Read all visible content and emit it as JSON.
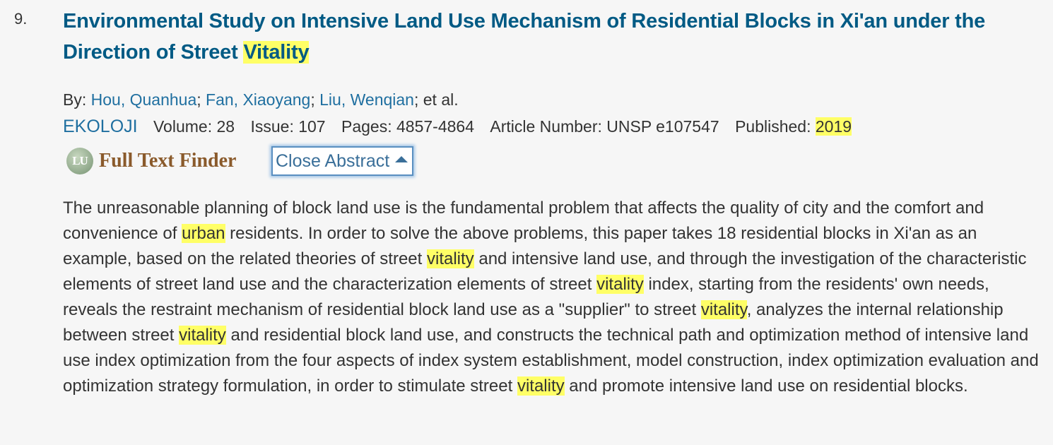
{
  "record": {
    "number": "9.",
    "title_pre": "Environmental Study on Intensive Land Use Mechanism of Residential Blocks in Xi'an under the Direction of Street ",
    "title_hl": "Vitality",
    "by_label": "By: ",
    "authors": [
      "Hou, Quanhua",
      "Fan, Xiaoyang",
      "Liu, Wenqian"
    ],
    "author_sep": "; ",
    "et_al": "; et al.",
    "journal": "EKOLOJI",
    "volume": "Volume: 28",
    "issue": "Issue: 107",
    "pages": "Pages: 4857-4864",
    "article_number": "Article Number: UNSP e107547",
    "published_label": "Published: ",
    "published_year": "2019",
    "full_text_finder": {
      "logo_text": "LU",
      "label": "Full Text Finder"
    },
    "close_abstract_label": "Close Abstract",
    "abstract": [
      {
        "t": "The unreasonable planning of block land use is the fundamental problem that affects the quality of city and the comfort and convenience of "
      },
      {
        "t": "urban",
        "hl": true
      },
      {
        "t": " residents. In order to solve the above problems, this paper takes 18 residential blocks in Xi'an as an example, based on the related theories of street "
      },
      {
        "t": "vitality",
        "hl": true
      },
      {
        "t": " and intensive land use, and through the investigation of the characteristic elements of street land use and the characterization elements of street "
      },
      {
        "t": "vitality",
        "hl": true
      },
      {
        "t": " index, starting from the residents' own needs, reveals the restraint mechanism of residential block land use as a \"supplier\" to street "
      },
      {
        "t": "vitality",
        "hl": true
      },
      {
        "t": ", analyzes the internal relationship between street "
      },
      {
        "t": "vitality",
        "hl": true
      },
      {
        "t": " and residential block land use, and constructs the technical path and optimization method of intensive land use index optimization from the four aspects of index system establishment, model construction, index optimization evaluation and optimization strategy formulation, in order to stimulate street "
      },
      {
        "t": "vitality",
        "hl": true
      },
      {
        "t": " and promote intensive land use on residential blocks."
      }
    ]
  },
  "colors": {
    "title": "#005a84",
    "link": "#1f6fa0",
    "highlight": "#ffff66",
    "text": "#333333",
    "background": "#f6f6f6"
  }
}
